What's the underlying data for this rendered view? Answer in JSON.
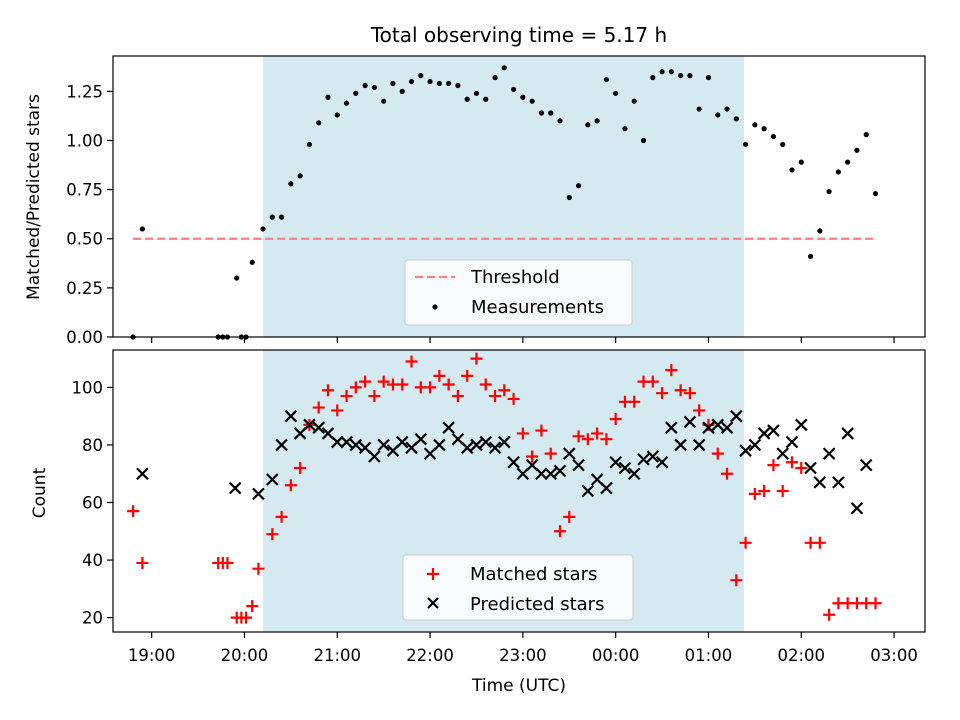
{
  "title": "Total observing time = 5.17 h",
  "xlabel": "Time (UTC)",
  "x_ticks": [
    "19:00",
    "20:00",
    "21:00",
    "22:00",
    "23:00",
    "00:00",
    "01:00",
    "02:00",
    "03:00"
  ],
  "colors": {
    "window": "#d4eaf0",
    "threshold": "#ff7f7f",
    "measurement": "#000000",
    "matched": "#ff0000",
    "predicted": "#000000"
  },
  "chart_data": [
    {
      "type": "scatter",
      "ylabel": "Matched/Predicted stars",
      "y_ticks": [
        "0.00",
        "0.25",
        "0.50",
        "0.75",
        "1.00",
        "1.25"
      ],
      "ylim": [
        0,
        1.43
      ],
      "xlim": [
        "18:35",
        "03:20"
      ],
      "observing_window": [
        "20:12",
        "01:23"
      ],
      "threshold": {
        "label": "Threshold",
        "value": 0.5,
        "x_range": [
          "18:48",
          "02:48"
        ]
      },
      "series": [
        {
          "name": "Measurements",
          "x": [
            "18:48",
            "18:54",
            "19:43",
            "19:46",
            "19:49",
            "19:55",
            "19:58",
            "20:01",
            "20:05",
            "20:12",
            "20:18",
            "20:24",
            "20:30",
            "20:36",
            "20:42",
            "20:48",
            "20:54",
            "21:00",
            "21:06",
            "21:12",
            "21:18",
            "21:24",
            "21:30",
            "21:36",
            "21:42",
            "21:48",
            "21:54",
            "22:00",
            "22:06",
            "22:12",
            "22:18",
            "22:24",
            "22:30",
            "22:36",
            "22:42",
            "22:48",
            "22:54",
            "23:00",
            "23:06",
            "23:12",
            "23:18",
            "23:24",
            "23:30",
            "23:36",
            "23:42",
            "23:48",
            "23:54",
            "00:00",
            "00:06",
            "00:12",
            "00:18",
            "00:24",
            "00:30",
            "00:36",
            "00:42",
            "00:48",
            "00:54",
            "01:00",
            "01:06",
            "01:12",
            "01:18",
            "01:24",
            "01:30",
            "01:36",
            "01:42",
            "01:48",
            "01:54",
            "02:00",
            "02:06",
            "02:12",
            "02:18",
            "02:24",
            "02:30",
            "02:36",
            "02:42",
            "02:48"
          ],
          "y": [
            0.0,
            0.55,
            0.0,
            0.0,
            0.0,
            0.3,
            0.0,
            0.0,
            0.38,
            0.55,
            0.61,
            0.61,
            0.78,
            0.82,
            0.98,
            1.09,
            1.22,
            1.13,
            1.19,
            1.24,
            1.28,
            1.27,
            1.2,
            1.29,
            1.25,
            1.3,
            1.33,
            1.3,
            1.29,
            1.29,
            1.28,
            1.21,
            1.24,
            1.21,
            1.32,
            1.37,
            1.26,
            1.22,
            1.2,
            1.14,
            1.14,
            1.1,
            0.71,
            0.77,
            1.08,
            1.1,
            1.31,
            1.24,
            1.06,
            1.2,
            1.0,
            1.32,
            1.35,
            1.35,
            1.33,
            1.33,
            1.16,
            1.32,
            1.13,
            1.16,
            1.11,
            0.98,
            1.08,
            1.06,
            1.02,
            0.98,
            0.85,
            0.89,
            0.41,
            0.54,
            0.74,
            0.84,
            0.89,
            0.95,
            1.03,
            0.73
          ]
        }
      ]
    },
    {
      "type": "scatter",
      "ylabel": "Count",
      "y_ticks": [
        "20",
        "40",
        "60",
        "80",
        "100"
      ],
      "ylim": [
        15,
        113
      ],
      "xlim": [
        "18:35",
        "03:20"
      ],
      "observing_window": [
        "20:12",
        "01:23"
      ],
      "series": [
        {
          "name": "Matched stars",
          "x": [
            "18:48",
            "18:54",
            "19:43",
            "19:46",
            "19:49",
            "19:55",
            "19:58",
            "20:01",
            "20:05",
            "20:09",
            "20:18",
            "20:24",
            "20:30",
            "20:36",
            "20:42",
            "20:48",
            "20:54",
            "21:00",
            "21:06",
            "21:12",
            "21:18",
            "21:24",
            "21:30",
            "21:36",
            "21:42",
            "21:48",
            "21:54",
            "22:00",
            "22:06",
            "22:12",
            "22:18",
            "22:24",
            "22:30",
            "22:36",
            "22:42",
            "22:48",
            "22:54",
            "23:00",
            "23:06",
            "23:12",
            "23:18",
            "23:24",
            "23:30",
            "23:36",
            "23:42",
            "23:48",
            "23:54",
            "00:00",
            "00:06",
            "00:12",
            "00:18",
            "00:24",
            "00:30",
            "00:36",
            "00:42",
            "00:48",
            "00:54",
            "01:00",
            "01:06",
            "01:12",
            "01:18",
            "01:24",
            "01:30",
            "01:36",
            "01:42",
            "01:48",
            "01:54",
            "02:00",
            "02:06",
            "02:12",
            "02:18",
            "02:24",
            "02:30",
            "02:36",
            "02:42",
            "02:48"
          ],
          "y": [
            57,
            39,
            39,
            39,
            39,
            20,
            20,
            20,
            24,
            37,
            49,
            55,
            66,
            72,
            87,
            93,
            99,
            92,
            97,
            100,
            102,
            97,
            102,
            101,
            101,
            109,
            100,
            100,
            104,
            101,
            97,
            104,
            110,
            101,
            97,
            99,
            96,
            84,
            76,
            85,
            77,
            50,
            55,
            83,
            82,
            84,
            82,
            89,
            95,
            95,
            102,
            102,
            98,
            106,
            99,
            98,
            92,
            87,
            77,
            70,
            33,
            46,
            63,
            64,
            73,
            64,
            74,
            72,
            46,
            46,
            21,
            25,
            25,
            25,
            25,
            25
          ]
        },
        {
          "name": "Predicted stars",
          "x": [
            "18:54",
            "19:54",
            "20:09",
            "20:18",
            "20:24",
            "20:30",
            "20:36",
            "20:42",
            "20:48",
            "20:54",
            "21:00",
            "21:06",
            "21:12",
            "21:18",
            "21:24",
            "21:30",
            "21:36",
            "21:42",
            "21:48",
            "21:54",
            "22:00",
            "22:06",
            "22:12",
            "22:18",
            "22:24",
            "22:30",
            "22:36",
            "22:42",
            "22:48",
            "22:54",
            "23:00",
            "23:06",
            "23:12",
            "23:18",
            "23:24",
            "23:30",
            "23:36",
            "23:42",
            "23:48",
            "23:54",
            "00:00",
            "00:06",
            "00:12",
            "00:18",
            "00:24",
            "00:30",
            "00:36",
            "00:42",
            "00:48",
            "00:54",
            "01:00",
            "01:06",
            "01:12",
            "01:18",
            "01:24",
            "01:30",
            "01:36",
            "01:42",
            "01:48",
            "01:54",
            "02:00",
            "02:06",
            "02:12",
            "02:18",
            "02:24",
            "02:30",
            "02:36",
            "02:42"
          ],
          "y": [
            70,
            65,
            63,
            68,
            80,
            90,
            84,
            87,
            86,
            84,
            81,
            81,
            80,
            79,
            76,
            80,
            78,
            81,
            79,
            82,
            77,
            80,
            86,
            82,
            79,
            80,
            81,
            79,
            81,
            74,
            70,
            73,
            70,
            70,
            71,
            77,
            73,
            64,
            68,
            65,
            74,
            72,
            70,
            75,
            76,
            74,
            86,
            80,
            88,
            80,
            86,
            87,
            86,
            90,
            78,
            80,
            84,
            85,
            77,
            81,
            87,
            72,
            67,
            77,
            67,
            84,
            58,
            73
          ]
        }
      ]
    }
  ]
}
